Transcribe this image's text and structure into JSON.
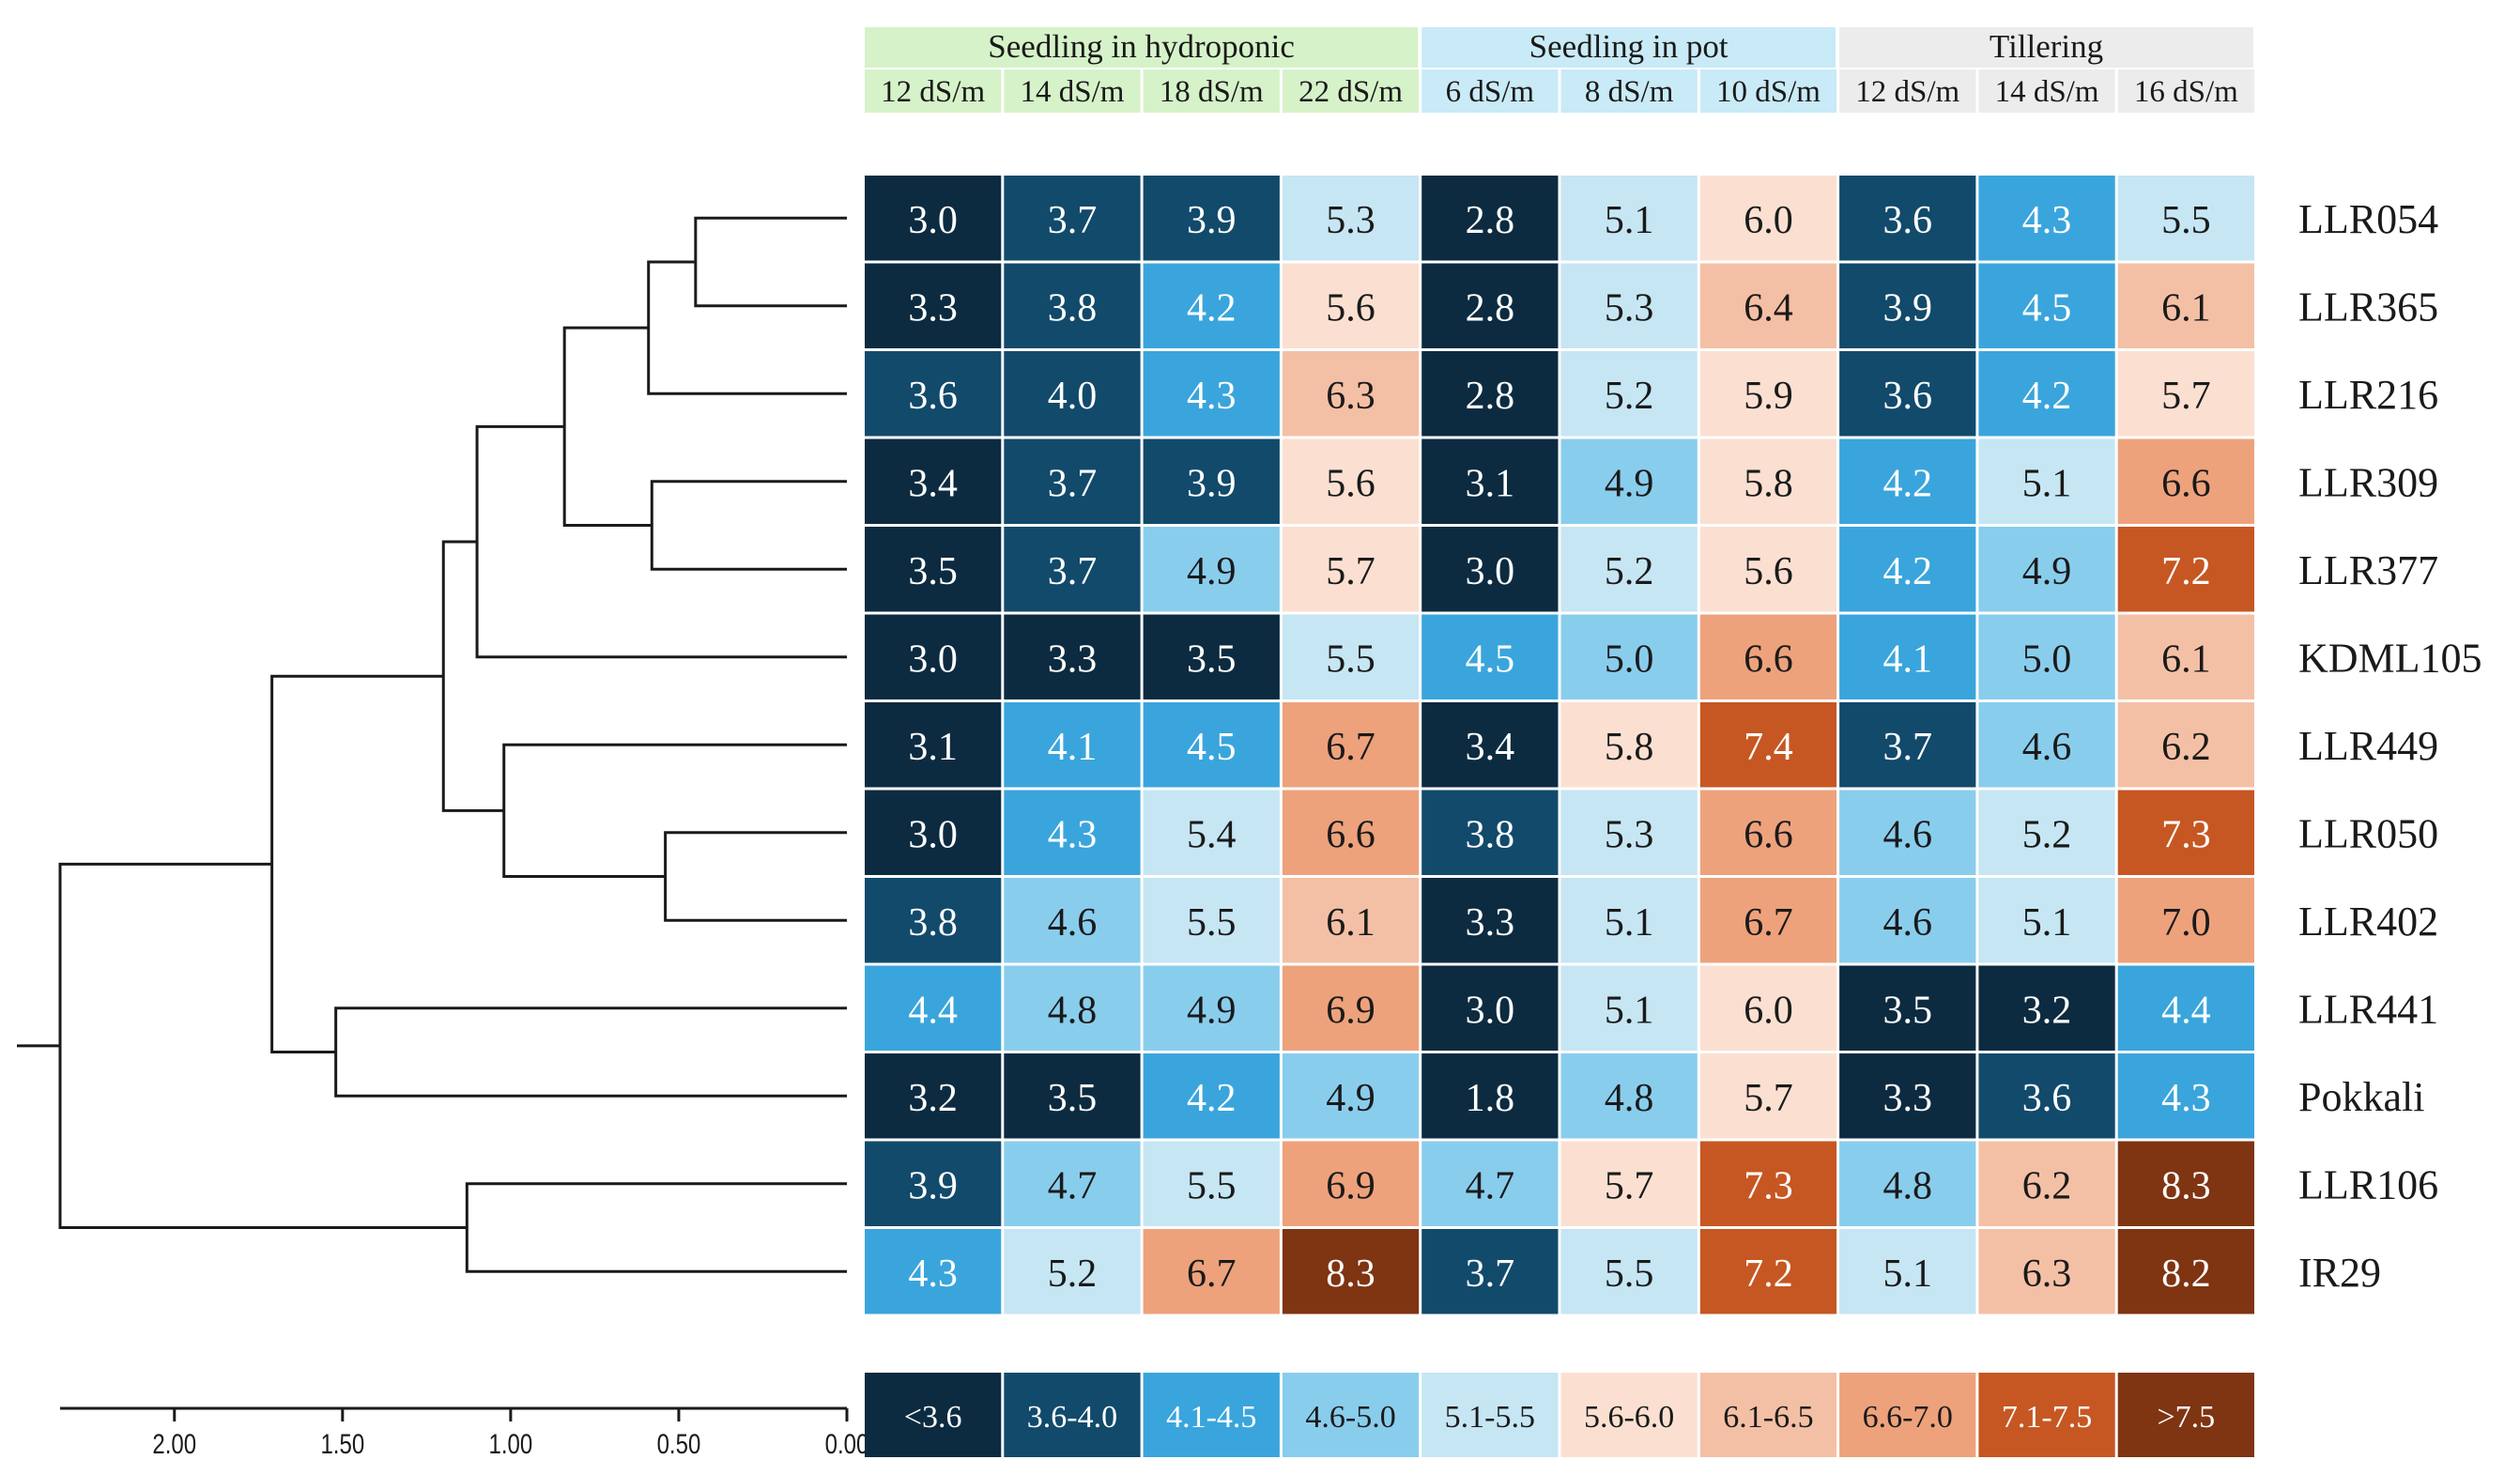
{
  "chart_data": {
    "type": "heatmap",
    "title": "",
    "group_headers": [
      {
        "label": "Seedling in hydroponic",
        "span": 4,
        "color": "#d6f2c9"
      },
      {
        "label": "Seedling in pot",
        "span": 3,
        "color": "#c9eaf7"
      },
      {
        "label": "Tillering",
        "span": 3,
        "color": "#ececec"
      }
    ],
    "columns": [
      "12 dS/m",
      "14 dS/m",
      "18 dS/m",
      "22 dS/m",
      "6 dS/m",
      "8 dS/m",
      "10 dS/m",
      "12 dS/m",
      "14 dS/m",
      "16 dS/m"
    ],
    "rows": [
      "LLR054",
      "LLR365",
      "LLR216",
      "LLR309",
      "LLR377",
      "KDML105",
      "LLR449",
      "LLR050",
      "LLR402",
      "LLR441",
      "Pokkali",
      "LLR106",
      "IR29"
    ],
    "values": [
      [
        "3.0",
        "3.7",
        "3.9",
        "5.3",
        "2.8",
        "5.1",
        "6.0",
        "3.6",
        "4.3",
        "5.5"
      ],
      [
        "3.3",
        "3.8",
        "4.2",
        "5.6",
        "2.8",
        "5.3",
        "6.4",
        "3.9",
        "4.5",
        "6.1"
      ],
      [
        "3.6",
        "4.0",
        "4.3",
        "6.3",
        "2.8",
        "5.2",
        "5.9",
        "3.6",
        "4.2",
        "5.7"
      ],
      [
        "3.4",
        "3.7",
        "3.9",
        "5.6",
        "3.1",
        "4.9",
        "5.8",
        "4.2",
        "5.1",
        "6.6"
      ],
      [
        "3.5",
        "3.7",
        "4.9",
        "5.7",
        "3.0",
        "5.2",
        "5.6",
        "4.2",
        "4.9",
        "7.2"
      ],
      [
        "3.0",
        "3.3",
        "3.5",
        "5.5",
        "4.5",
        "5.0",
        "6.6",
        "4.1",
        "5.0",
        "6.1"
      ],
      [
        "3.1",
        "4.1",
        "4.5",
        "6.7",
        "3.4",
        "5.8",
        "7.4",
        "3.7",
        "4.6",
        "6.2"
      ],
      [
        "3.0",
        "4.3",
        "5.4",
        "6.6",
        "3.8",
        "5.3",
        "6.6",
        "4.6",
        "5.2",
        "7.3"
      ],
      [
        "3.8",
        "4.6",
        "5.5",
        "6.1",
        "3.3",
        "5.1",
        "6.7",
        "4.6",
        "5.1",
        "7.0"
      ],
      [
        "4.4",
        "4.8",
        "4.9",
        "6.9",
        "3.0",
        "5.1",
        "6.0",
        "3.5",
        "3.2",
        "4.4"
      ],
      [
        "3.2",
        "3.5",
        "4.2",
        "4.9",
        "1.8",
        "4.8",
        "5.7",
        "3.3",
        "3.6",
        "4.3"
      ],
      [
        "3.9",
        "4.7",
        "5.5",
        "6.9",
        "4.7",
        "5.7",
        "7.3",
        "4.8",
        "6.2",
        "8.3"
      ],
      [
        "4.3",
        "5.2",
        "6.7",
        "8.3",
        "3.7",
        "5.5",
        "7.2",
        "5.1",
        "6.3",
        "8.2"
      ]
    ],
    "legend": {
      "labels": [
        "<3.6",
        "3.6-4.0",
        "4.1-4.5",
        "4.6-5.0",
        "5.1-5.5",
        "5.6-6.0",
        "6.1-6.5",
        "6.6-7.0",
        "7.1-7.5",
        ">7.5"
      ],
      "upper_bounds": [
        3.55,
        4.05,
        4.55,
        5.05,
        5.55,
        6.05,
        6.55,
        7.05,
        7.55,
        99
      ],
      "colors": [
        "#0c2b40",
        "#124a6b",
        "#3aa5dc",
        "#89cded",
        "#c6e6f4",
        "#fbe0d2",
        "#f4c0a5",
        "#eda27c",
        "#c65722",
        "#7f3412"
      ],
      "dark_text_threshold_index": 3
    },
    "dendrogram": {
      "leaf_order": [
        "LLR054",
        "LLR365",
        "LLR216",
        "LLR309",
        "LLR377",
        "KDML105",
        "LLR449",
        "LLR050",
        "LLR402",
        "LLR441",
        "Pokkali",
        "LLR106",
        "IR29"
      ],
      "merges": [
        {
          "left": "L0",
          "right": "L1",
          "height": 0.45
        },
        {
          "left": "N0",
          "right": "L2",
          "height": 0.59
        },
        {
          "left": "L3",
          "right": "L4",
          "height": 0.58
        },
        {
          "left": "N1",
          "right": "N2",
          "height": 0.84
        },
        {
          "left": "N3",
          "right": "L5",
          "height": 1.1
        },
        {
          "left": "L7",
          "right": "L8",
          "height": 0.54
        },
        {
          "left": "L6",
          "right": "N5",
          "height": 1.02
        },
        {
          "left": "N4",
          "right": "N6",
          "height": 1.2
        },
        {
          "left": "L9",
          "right": "L10",
          "height": 1.52
        },
        {
          "left": "N7",
          "right": "N8",
          "height": 1.71
        },
        {
          "left": "L11",
          "right": "L12",
          "height": 1.13
        },
        {
          "left": "N9",
          "right": "N10",
          "height": 2.34
        }
      ],
      "root_stub": 2.6,
      "axis_max": 2.34,
      "ticks": [
        2.0,
        1.5,
        1.0,
        0.5,
        0.0
      ],
      "tick_labels": [
        "2.00",
        "1.50",
        "1.00",
        "0.50",
        "0.00"
      ]
    }
  }
}
